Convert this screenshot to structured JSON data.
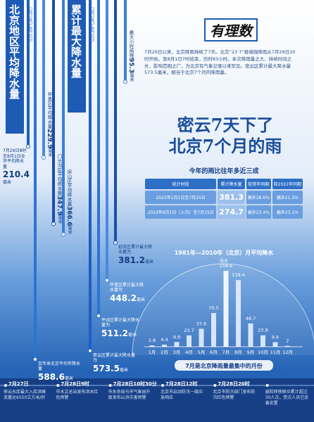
{
  "logo": "有理数",
  "title": [
    "密云7天下了",
    "北京7个月的雨"
  ],
  "intro": "7月29日以来，北京降雨持续了7天。北京“23·7”极端强降雨从7月29日20时开始，至8月1日7时结束，历时83小时。本次降雨量之大、持续时间之长、影响范围之广，为北京有气象记录以来罕见。密云区累计最大降水量573.5毫米，相当于北京7个月的降雨量。",
  "unit": "毫米",
  "average_column": {
    "title": "北京地区平均降水量",
    "subtitle": "（7月29日-8月1日）"
  },
  "max_column": {
    "title": "累计最大降水量",
    "subtitle": "（7月29日-8月1日）"
  },
  "average_bars": [
    {
      "label": "7月29日8时至8月1日全市平均降水量",
      "value": 210.4
    },
    {
      "label": "百年来北京平均年降水量",
      "value": 588.6
    },
    {
      "label": "怀柔区平均降水量",
      "value": 229.9
    },
    {
      "label": "门头沟区平均降水量",
      "value": 347.9
    },
    {
      "label": "房山区平均降水量",
      "value": 366.6
    }
  ],
  "max_bars": [
    {
      "label": "密云区累计最大降水量为",
      "value": 573.5
    },
    {
      "label": "平谷区累计最大降水量为",
      "value": 511.2
    },
    {
      "label": "怀柔区累计最大降水量为",
      "value": 448.2
    },
    {
      "label": "延庆区累计最大降水量为",
      "value": 381.2
    },
    {
      "label": "最大小时雨强",
      "value": 95.3
    }
  ],
  "comparison": {
    "title": "今年的雨比往年多近三成",
    "headers": [
      "统计时段",
      "累计降水量",
      "较常年同期",
      "较2022年同期"
    ],
    "rows": [
      [
        "2023年1月1日至7月25日",
        "381.3",
        "偏多28.6%",
        "偏多21.5%"
      ],
      [
        "2023年6月1日（入汛）至7月25日",
        "274.7",
        "偏多23.4%",
        "偏多23.1%"
      ]
    ]
  },
  "chart_data": {
    "type": "bar",
    "title": "1981年—2010年（北京）月平均降水",
    "unit": "毫米",
    "categories": [
      "1月",
      "2月",
      "3月",
      "4月",
      "5月",
      "6月",
      "7月",
      "8月",
      "9月",
      "10月",
      "11月",
      "12月"
    ],
    "values": [
      2.8,
      4.4,
      9.9,
      23.7,
      37.6,
      70.5,
      158.6,
      139.4,
      48.7,
      23.9,
      9.6,
      2
    ],
    "color": "#e6f0ff",
    "highlight_color": "#ffffff",
    "caption": "7月是北京降雨量最集中的月份"
  },
  "timeline": [
    {
      "date": "7月27日",
      "text": "密云水库最大入库洪峰流量达6550立方米/秒"
    },
    {
      "date": "7月28日9时",
      "text": "市水文总站发布洪水红色预警"
    },
    {
      "date": "7月28日10时30分",
      "text": "市水务局与市气象局升级发布山洪灾害预警"
    },
    {
      "date": "7月28日12时",
      "text": "北京市启动防汛一级应急响应"
    },
    {
      "date": "7月28日20时",
      "text": "北京市防汛部门发布防汛红色预警"
    },
    {
      "date": "",
      "text": "避险转移群众累计超过30人次，受灾人员已妥善安置"
    }
  ]
}
